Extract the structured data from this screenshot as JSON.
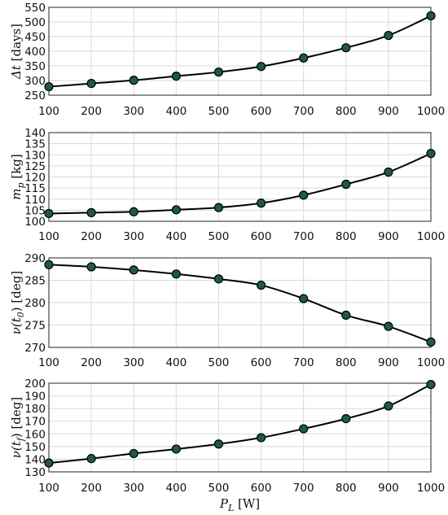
{
  "chart_data": [
    {
      "type": "line",
      "x": [
        100,
        200,
        300,
        400,
        500,
        600,
        700,
        800,
        900,
        1000
      ],
      "series": [
        {
          "values": [
            279,
            290,
            301,
            315,
            329,
            348,
            377,
            412,
            454,
            521
          ]
        }
      ],
      "ylabel": {
        "sym": "Δt",
        "unit": " [days]"
      },
      "xlim": [
        100,
        1000
      ],
      "ylim": [
        250,
        550
      ],
      "yticks": [
        250,
        300,
        350,
        400,
        450,
        500,
        550
      ],
      "grid": true
    },
    {
      "type": "line",
      "x": [
        100,
        200,
        300,
        400,
        500,
        600,
        700,
        800,
        900,
        1000
      ],
      "series": [
        {
          "values": [
            103.5,
            103.9,
            104.3,
            105.2,
            106.2,
            108.2,
            111.8,
            116.7,
            122.2,
            130.6
          ]
        }
      ],
      "ylabel": {
        "sym": "m",
        "sub": "p",
        "unit": " [kg]"
      },
      "xlim": [
        100,
        1000
      ],
      "ylim": [
        100,
        140
      ],
      "yticks": [
        100,
        105,
        110,
        115,
        120,
        125,
        130,
        135,
        140
      ],
      "grid": true
    },
    {
      "type": "line",
      "x": [
        100,
        200,
        300,
        400,
        500,
        600,
        700,
        800,
        900,
        1000
      ],
      "series": [
        {
          "values": [
            288.5,
            288.0,
            287.3,
            286.4,
            285.3,
            283.9,
            280.9,
            277.2,
            274.7,
            271.2
          ]
        }
      ],
      "ylabel": {
        "sym": "ν(t",
        "sub": "0",
        "tail": ")",
        "unit": " [deg]"
      },
      "xlim": [
        100,
        1000
      ],
      "ylim": [
        270,
        290
      ],
      "yticks": [
        270,
        275,
        280,
        285,
        290
      ],
      "grid": true
    },
    {
      "type": "line",
      "x": [
        100,
        200,
        300,
        400,
        500,
        600,
        700,
        800,
        900,
        1000
      ],
      "series": [
        {
          "values": [
            137,
            140.5,
            144.5,
            148,
            152,
            157,
            164,
            172,
            182,
            199
          ]
        }
      ],
      "ylabel": {
        "sym": "ν(t",
        "sub": "f",
        "tail": ")",
        "unit": " [deg]"
      },
      "xlabel": {
        "sym": "P",
        "sub": "L",
        "unit": " [W]"
      },
      "xlim": [
        100,
        1000
      ],
      "ylim": [
        130,
        200
      ],
      "yticks": [
        130,
        140,
        150,
        160,
        170,
        180,
        190,
        200
      ],
      "grid": true
    }
  ],
  "xticks": [
    100,
    200,
    300,
    400,
    500,
    600,
    700,
    800,
    900,
    1000
  ],
  "colors": {
    "marker_fill": "#1f5c3a",
    "line": "#000000",
    "grid": "#d9d9d9"
  }
}
